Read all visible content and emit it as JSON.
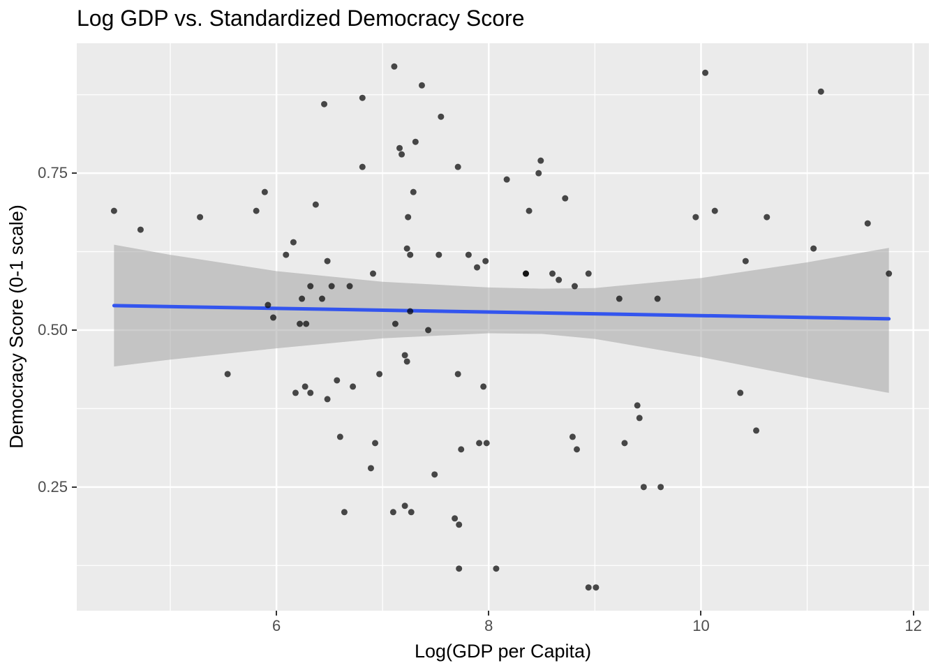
{
  "title": "Log GDP vs. Standardized Democracy Score",
  "chart_data": {
    "type": "scatter",
    "title": "Log GDP vs. Standardized Democracy Score",
    "xlabel": "Log(GDP per Capita)",
    "ylabel": "Democracy Score (0-1 scale)",
    "xlim": [
      4.119,
      12.147
    ],
    "ylim": [
      0.053,
      0.957
    ],
    "grid": true,
    "legend": false,
    "x_major_ticks": [
      6,
      8,
      10,
      12
    ],
    "x_tick_labels": [
      "6",
      "8",
      "10",
      "12"
    ],
    "x_minor_ticks": [
      5,
      7,
      9,
      11
    ],
    "y_major_ticks": [
      0.25,
      0.5,
      0.75
    ],
    "y_tick_labels": [
      "0.25",
      "0.50",
      "0.75"
    ],
    "y_minor_ticks": [
      0.125,
      0.375,
      0.625,
      0.875
    ],
    "points": [
      [
        4.47,
        0.69
      ],
      [
        4.72,
        0.66
      ],
      [
        5.28,
        0.68
      ],
      [
        5.81,
        0.69
      ],
      [
        5.89,
        0.72
      ],
      [
        5.92,
        0.54
      ],
      [
        5.97,
        0.52
      ],
      [
        6.09,
        0.62
      ],
      [
        6.16,
        0.64
      ],
      [
        7.11,
        0.92
      ],
      [
        7.37,
        0.89
      ],
      [
        6.45,
        0.86
      ],
      [
        6.81,
        0.87
      ],
      [
        7.55,
        0.84
      ],
      [
        7.31,
        0.8
      ],
      [
        7.16,
        0.79
      ],
      [
        7.18,
        0.78
      ],
      [
        6.81,
        0.76
      ],
      [
        7.71,
        0.76
      ],
      [
        8.17,
        0.74
      ],
      [
        7.29,
        0.72
      ],
      [
        6.37,
        0.7
      ],
      [
        7.24,
        0.68
      ],
      [
        7.23,
        0.63
      ],
      [
        7.26,
        0.62
      ],
      [
        7.53,
        0.62
      ],
      [
        7.81,
        0.62
      ],
      [
        6.48,
        0.61
      ],
      [
        7.89,
        0.6
      ],
      [
        7.97,
        0.61
      ],
      [
        6.91,
        0.59
      ],
      [
        6.32,
        0.57
      ],
      [
        6.52,
        0.57
      ],
      [
        6.69,
        0.57
      ],
      [
        6.43,
        0.55
      ],
      [
        6.24,
        0.55
      ],
      [
        7.26,
        0.53
      ],
      [
        6.22,
        0.51
      ],
      [
        6.28,
        0.51
      ],
      [
        7.12,
        0.51
      ],
      [
        10.04,
        0.91
      ],
      [
        8.49,
        0.77
      ],
      [
        8.47,
        0.75
      ],
      [
        8.72,
        0.71
      ],
      [
        8.38,
        0.69
      ],
      [
        9.95,
        0.68
      ],
      [
        10.13,
        0.69
      ],
      [
        8.35,
        0.59
      ],
      [
        8.35,
        0.59
      ],
      [
        8.6,
        0.59
      ],
      [
        8.66,
        0.58
      ],
      [
        8.81,
        0.57
      ],
      [
        8.94,
        0.59
      ],
      [
        9.23,
        0.55
      ],
      [
        9.59,
        0.55
      ],
      [
        11.13,
        0.88
      ],
      [
        10.62,
        0.68
      ],
      [
        11.57,
        0.67
      ],
      [
        11.06,
        0.63
      ],
      [
        10.42,
        0.61
      ],
      [
        11.77,
        0.59
      ],
      [
        5.54,
        0.43
      ],
      [
        7.43,
        0.5
      ],
      [
        7.21,
        0.46
      ],
      [
        7.23,
        0.45
      ],
      [
        6.97,
        0.43
      ],
      [
        7.71,
        0.43
      ],
      [
        6.57,
        0.42
      ],
      [
        6.72,
        0.41
      ],
      [
        6.27,
        0.41
      ],
      [
        6.18,
        0.4
      ],
      [
        6.32,
        0.4
      ],
      [
        6.48,
        0.39
      ],
      [
        7.95,
        0.41
      ],
      [
        6.6,
        0.33
      ],
      [
        6.93,
        0.32
      ],
      [
        7.74,
        0.31
      ],
      [
        7.91,
        0.32
      ],
      [
        7.98,
        0.32
      ],
      [
        6.89,
        0.28
      ],
      [
        7.49,
        0.27
      ],
      [
        6.64,
        0.21
      ],
      [
        7.21,
        0.22
      ],
      [
        7.27,
        0.21
      ],
      [
        7.1,
        0.21
      ],
      [
        7.68,
        0.2
      ],
      [
        7.72,
        0.19
      ],
      [
        7.72,
        0.12
      ],
      [
        8.07,
        0.12
      ],
      [
        9.4,
        0.38
      ],
      [
        9.42,
        0.36
      ],
      [
        8.79,
        0.33
      ],
      [
        8.83,
        0.31
      ],
      [
        9.28,
        0.32
      ],
      [
        9.46,
        0.25
      ],
      [
        9.62,
        0.25
      ],
      [
        8.94,
        0.09
      ],
      [
        9.01,
        0.09
      ],
      [
        10.37,
        0.4
      ],
      [
        10.52,
        0.34
      ]
    ],
    "regression_line": {
      "x": [
        4.47,
        11.77
      ],
      "y": [
        0.539,
        0.518
      ]
    },
    "confidence_band": {
      "x": [
        4.47,
        5.0,
        6.0,
        7.0,
        8.0,
        8.5,
        9.0,
        10.0,
        11.0,
        11.77
      ],
      "upper": [
        0.636,
        0.62,
        0.594,
        0.577,
        0.568,
        0.566,
        0.567,
        0.583,
        0.608,
        0.631
      ],
      "lower": [
        0.442,
        0.453,
        0.471,
        0.487,
        0.495,
        0.494,
        0.486,
        0.457,
        0.424,
        0.4
      ]
    },
    "colors": {
      "panel_bg": "#EBEBEB",
      "grid": "#FFFFFF",
      "point": "#000000",
      "point_opacity": 0.7,
      "smooth_line": "#3355EE",
      "band": "#999999",
      "band_opacity": 0.48,
      "tick_label": "#4D4D4D",
      "tick_mark": "#333333",
      "text": "#000000"
    }
  }
}
